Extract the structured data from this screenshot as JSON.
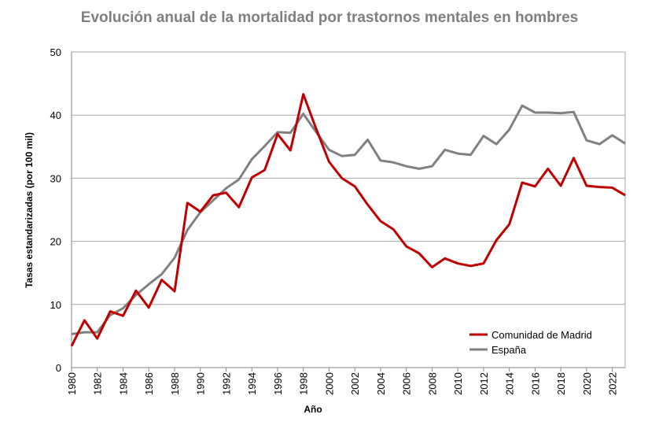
{
  "chart_data": {
    "type": "line",
    "title": "Evolución anual de la mortalidad por trastornos mentales en hombres",
    "xlabel": "Año",
    "ylabel": "Tasas estandarizadas (por 100 mil)",
    "xlim": [
      1980,
      2023
    ],
    "ylim": [
      0,
      50
    ],
    "yticks": [
      0,
      10,
      20,
      30,
      40,
      50
    ],
    "xticks": [
      1980,
      1982,
      1984,
      1986,
      1988,
      1990,
      1992,
      1994,
      1996,
      1998,
      2000,
      2002,
      2004,
      2006,
      2008,
      2010,
      2012,
      2014,
      2016,
      2018,
      2020,
      2022
    ],
    "grid": "horizontal",
    "legend_position": "bottom-right",
    "x": [
      1980,
      1981,
      1982,
      1983,
      1984,
      1985,
      1986,
      1987,
      1988,
      1989,
      1990,
      1991,
      1992,
      1993,
      1994,
      1995,
      1996,
      1997,
      1998,
      1999,
      2000,
      2001,
      2002,
      2003,
      2004,
      2005,
      2006,
      2007,
      2008,
      2009,
      2010,
      2011,
      2012,
      2013,
      2014,
      2015,
      2016,
      2017,
      2018,
      2019,
      2020,
      2021,
      2022,
      2023
    ],
    "series": [
      {
        "name": "Comunidad de Madrid",
        "color": "#c00000",
        "values": [
          3.4,
          7.5,
          4.6,
          8.9,
          8.2,
          12.2,
          9.5,
          13.9,
          12.1,
          26.1,
          24.7,
          27.3,
          27.7,
          25.4,
          30.1,
          31.3,
          37.0,
          34.4,
          43.3,
          37.8,
          32.6,
          30.0,
          28.7,
          25.8,
          23.2,
          21.9,
          19.2,
          18.1,
          15.9,
          17.3,
          16.5,
          16.1,
          16.5,
          20.2,
          22.7,
          29.3,
          28.7,
          31.5,
          28.8,
          33.2,
          28.8,
          28.6,
          28.5,
          27.3
        ]
      },
      {
        "name": "España",
        "color": "#808080",
        "values": [
          5.3,
          5.6,
          5.6,
          8.3,
          9.4,
          11.5,
          13.2,
          14.8,
          17.4,
          21.8,
          24.6,
          26.5,
          28.4,
          29.8,
          33.0,
          35.1,
          37.3,
          37.2,
          40.2,
          37.3,
          34.5,
          33.5,
          33.7,
          36.1,
          32.8,
          32.5,
          31.9,
          31.5,
          31.9,
          34.5,
          33.9,
          33.7,
          36.7,
          35.4,
          37.7,
          41.5,
          40.4,
          40.4,
          40.3,
          40.5,
          36.0,
          35.4,
          36.8,
          35.5
        ]
      }
    ]
  }
}
